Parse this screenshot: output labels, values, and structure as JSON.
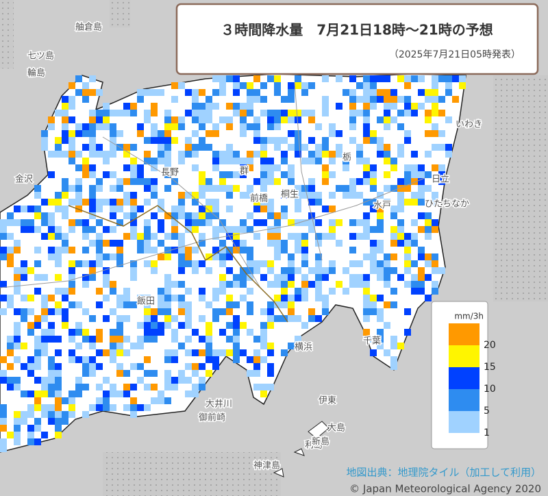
{
  "header": {
    "title": "３時間降水量　7月21日18時～21時の予想",
    "subtitle": "（2025年7月21日05時発表）"
  },
  "legend": {
    "unit": "mm/3h",
    "levels": [
      {
        "value": 1,
        "color": "#a0d2ff"
      },
      {
        "value": 5,
        "color": "#2e8cf0"
      },
      {
        "value": 10,
        "color": "#0041ff"
      },
      {
        "value": 15,
        "color": "#fff500"
      },
      {
        "value": 20,
        "color": "#ff9900"
      }
    ]
  },
  "places": [
    "舳倉島",
    "七ツ島",
    "輪島",
    "金沢",
    "長野",
    "前橋",
    "桐生",
    "群",
    "栃",
    "水戸",
    "日立",
    "ひたちなか",
    "いわき",
    "飯田",
    "千葉",
    "横浜",
    "伊東",
    "大島",
    "利島",
    "新島",
    "神津島",
    "大井川",
    "御前崎"
  ],
  "credits": {
    "source": "地図出典：地理院タイル（加工して利用）",
    "copyright": "© Japan Meteorological Agency 2020"
  }
}
